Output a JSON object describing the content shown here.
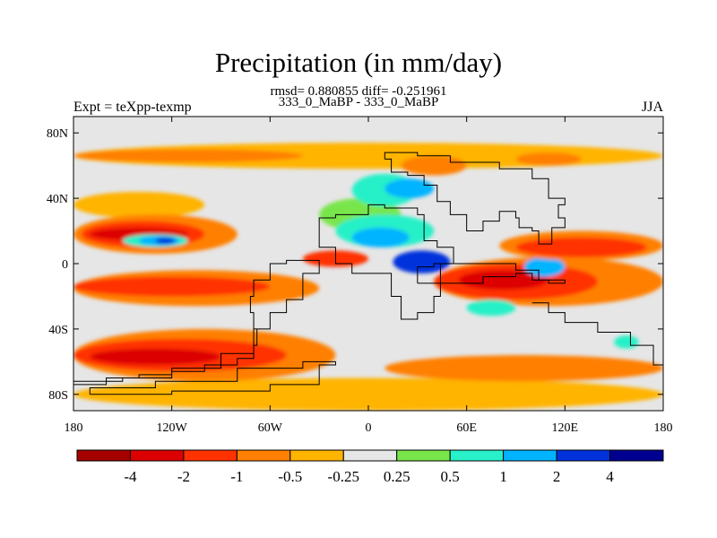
{
  "header": {
    "title": "Precipitation (in mm/day)",
    "stats": "rmsd= 0.880855 diff= -0.251961",
    "subtitle": "333_0_MaBP - 333_0_MaBP",
    "left_label": "Expt = teXpp-texmp",
    "right_label": "JJA"
  },
  "map": {
    "lon_range": [
      -180,
      180
    ],
    "lat_range": [
      -90,
      90
    ],
    "background_color": "#e6e6e6",
    "x_ticks": [
      {
        "lon": -180,
        "label": "180"
      },
      {
        "lon": -120,
        "label": "120W"
      },
      {
        "lon": -60,
        "label": "60W"
      },
      {
        "lon": 0,
        "label": "0"
      },
      {
        "lon": 60,
        "label": "60E"
      },
      {
        "lon": 120,
        "label": "120E"
      },
      {
        "lon": 180,
        "label": "180"
      }
    ],
    "y_ticks": [
      {
        "lat": 80,
        "label": "80N"
      },
      {
        "lat": 40,
        "label": "40N"
      },
      {
        "lat": 0,
        "label": "0"
      },
      {
        "lat": -40,
        "label": "40S"
      },
      {
        "lat": -80,
        "label": "80S"
      }
    ],
    "level_colors": {
      "lt_-4": "#a50000",
      "-4_-2": "#dc0000",
      "-2_-1": "#ff3200",
      "-1_-0.5": "#ff7f00",
      "-0.5_-0.25": "#ffb400",
      "-0.25_0.25": "#e6e6e6",
      "0.25_0.5": "#78e64b",
      "0.5_1": "#28f0c8",
      "1_2": "#00b4ff",
      "2_4": "#0032dc",
      "gt_4": "#000090"
    },
    "regions": [
      {
        "level": "-0.5_-0.25",
        "lon": [
          -180,
          180
        ],
        "lat": [
          58,
          74
        ]
      },
      {
        "level": "-1_-0.5",
        "lon": [
          -180,
          -40
        ],
        "lat": [
          62,
          70
        ]
      },
      {
        "level": "-1_-0.5",
        "lon": [
          20,
          60
        ],
        "lat": [
          54,
          66
        ]
      },
      {
        "level": "-1_-0.5",
        "lon": [
          90,
          130
        ],
        "lat": [
          60,
          68
        ]
      },
      {
        "level": "-0.5_-0.25",
        "lon": [
          -180,
          -100
        ],
        "lat": [
          28,
          44
        ]
      },
      {
        "level": "-1_-0.5",
        "lon": [
          -180,
          -80
        ],
        "lat": [
          6,
          30
        ]
      },
      {
        "level": "-2_-1",
        "lon": [
          -175,
          -100
        ],
        "lat": [
          10,
          26
        ]
      },
      {
        "level": "-4_-2",
        "lon": [
          -170,
          -110
        ],
        "lat": [
          14,
          22
        ]
      },
      {
        "level": "0.5_1",
        "lon": [
          -150,
          -110
        ],
        "lat": [
          10,
          18
        ]
      },
      {
        "level": "1_2",
        "lon": [
          -140,
          -115
        ],
        "lat": [
          11,
          17
        ]
      },
      {
        "level": "2_4",
        "lon": [
          -130,
          -118
        ],
        "lat": [
          12,
          16
        ]
      },
      {
        "level": "0.25_0.5",
        "lon": [
          -30,
          20
        ],
        "lat": [
          20,
          40
        ]
      },
      {
        "level": "0.5_1",
        "lon": [
          -20,
          40
        ],
        "lat": [
          10,
          30
        ]
      },
      {
        "level": "0.5_1",
        "lon": [
          -10,
          30
        ],
        "lat": [
          35,
          55
        ]
      },
      {
        "level": "1_2",
        "lon": [
          10,
          40
        ],
        "lat": [
          40,
          52
        ]
      },
      {
        "level": "1_2",
        "lon": [
          -10,
          25
        ],
        "lat": [
          10,
          22
        ]
      },
      {
        "level": "2_4",
        "lon": [
          15,
          50
        ],
        "lat": [
          -6,
          8
        ]
      },
      {
        "level": "-2_-1",
        "lon": [
          -40,
          0
        ],
        "lat": [
          -2,
          8
        ]
      },
      {
        "level": "-1_-0.5",
        "lon": [
          40,
          180
        ],
        "lat": [
          -26,
          4
        ]
      },
      {
        "level": "-2_-1",
        "lon": [
          40,
          140
        ],
        "lat": [
          -22,
          0
        ]
      },
      {
        "level": "-4_-2",
        "lon": [
          55,
          110
        ],
        "lat": [
          -16,
          -4
        ]
      },
      {
        "level": "-4_-2",
        "lon": [
          70,
          90
        ],
        "lat": [
          -14,
          -6
        ]
      },
      {
        "level": "1_2",
        "lon": [
          95,
          120
        ],
        "lat": [
          -8,
          4
        ]
      },
      {
        "level": "-1_-0.5",
        "lon": [
          80,
          180
        ],
        "lat": [
          2,
          20
        ]
      },
      {
        "level": "-2_-1",
        "lon": [
          90,
          170
        ],
        "lat": [
          4,
          16
        ]
      },
      {
        "level": "-1_-0.5",
        "lon": [
          -180,
          -30
        ],
        "lat": [
          -26,
          -4
        ]
      },
      {
        "level": "-2_-1",
        "lon": [
          -180,
          -60
        ],
        "lat": [
          -20,
          -8
        ]
      },
      {
        "level": "0.5_1",
        "lon": [
          60,
          90
        ],
        "lat": [
          -32,
          -22
        ]
      },
      {
        "level": "-0.5_-0.25",
        "lon": [
          -180,
          180
        ],
        "lat": [
          -90,
          -70
        ]
      },
      {
        "level": "-1_-0.5",
        "lon": [
          -180,
          -20
        ],
        "lat": [
          -72,
          -40
        ]
      },
      {
        "level": "-2_-1",
        "lon": [
          -180,
          -50
        ],
        "lat": [
          -66,
          -46
        ]
      },
      {
        "level": "-4_-2",
        "lon": [
          -170,
          -90
        ],
        "lat": [
          -62,
          -52
        ]
      },
      {
        "level": "-1_-0.5",
        "lon": [
          10,
          180
        ],
        "lat": [
          -72,
          -56
        ]
      },
      {
        "level": "0.5_1",
        "lon": [
          150,
          165
        ],
        "lat": [
          -52,
          -44
        ]
      }
    ],
    "coastlines": [
      [
        [
          -180,
          -72
        ],
        [
          -170,
          -72
        ],
        [
          -150,
          -70
        ],
        [
          -140,
          -68
        ],
        [
          -120,
          -66
        ],
        [
          -100,
          -62
        ],
        [
          -80,
          -58
        ],
        [
          -70,
          -50
        ],
        [
          -68,
          -40
        ],
        [
          -70,
          -30
        ],
        [
          -72,
          -20
        ],
        [
          -70,
          -10
        ],
        [
          -60,
          0
        ],
        [
          -50,
          2
        ],
        [
          -30,
          -6
        ],
        [
          -40,
          -22
        ],
        [
          -50,
          -30
        ],
        [
          -60,
          -40
        ],
        [
          -70,
          -55
        ],
        [
          -90,
          -64
        ],
        [
          -120,
          -70
        ],
        [
          -160,
          -74
        ],
        [
          -180,
          -76
        ]
      ],
      [
        [
          -20,
          28
        ],
        [
          -30,
          10
        ],
        [
          -20,
          0
        ],
        [
          -10,
          -6
        ],
        [
          0,
          -6
        ],
        [
          10,
          -6
        ],
        [
          14,
          -20
        ],
        [
          20,
          -34
        ],
        [
          30,
          -30
        ],
        [
          40,
          -20
        ],
        [
          44,
          0
        ],
        [
          52,
          10
        ],
        [
          42,
          14
        ],
        [
          34,
          30
        ],
        [
          30,
          34
        ],
        [
          20,
          34
        ],
        [
          10,
          36
        ],
        [
          0,
          30
        ],
        [
          -10,
          30
        ],
        [
          -20,
          28
        ]
      ],
      [
        [
          10,
          64
        ],
        [
          14,
          56
        ],
        [
          24,
          54
        ],
        [
          34,
          48
        ],
        [
          42,
          38
        ],
        [
          50,
          30
        ],
        [
          60,
          20
        ],
        [
          70,
          26
        ],
        [
          80,
          32
        ],
        [
          90,
          28
        ],
        [
          92,
          22
        ],
        [
          100,
          20
        ],
        [
          104,
          12
        ],
        [
          112,
          22
        ],
        [
          120,
          28
        ],
        [
          116,
          36
        ],
        [
          120,
          40
        ],
        [
          110,
          52
        ],
        [
          100,
          58
        ],
        [
          80,
          62
        ],
        [
          50,
          66
        ],
        [
          30,
          68
        ],
        [
          10,
          64
        ]
      ],
      [
        [
          30,
          -12
        ],
        [
          50,
          -12
        ],
        [
          70,
          -8
        ],
        [
          90,
          -6
        ],
        [
          100,
          -10
        ],
        [
          110,
          -12
        ],
        [
          120,
          -10
        ],
        [
          104,
          -4
        ],
        [
          90,
          0
        ],
        [
          60,
          0
        ],
        [
          40,
          -2
        ],
        [
          30,
          -12
        ]
      ],
      [
        [
          100,
          -24
        ],
        [
          110,
          -30
        ],
        [
          120,
          -36
        ],
        [
          140,
          -42
        ],
        [
          160,
          -50
        ],
        [
          174,
          -62
        ],
        [
          180,
          -66
        ]
      ],
      [
        [
          -170,
          -80
        ],
        [
          -120,
          -78
        ],
        [
          -60,
          -74
        ],
        [
          -30,
          -62
        ],
        [
          -20,
          -60
        ],
        [
          -40,
          -64
        ],
        [
          -80,
          -72
        ],
        [
          -130,
          -76
        ],
        [
          -170,
          -80
        ]
      ]
    ]
  },
  "colorbar": {
    "colors": [
      "#a50000",
      "#dc0000",
      "#ff3200",
      "#ff7f00",
      "#ffb400",
      "#e6e6e6",
      "#78e64b",
      "#28f0c8",
      "#00b4ff",
      "#0032dc",
      "#000090"
    ],
    "labels": [
      "-4",
      "-2",
      "-1",
      "-0.5",
      "-0.25",
      "0.25",
      "0.5",
      "1",
      "2",
      "4"
    ]
  }
}
